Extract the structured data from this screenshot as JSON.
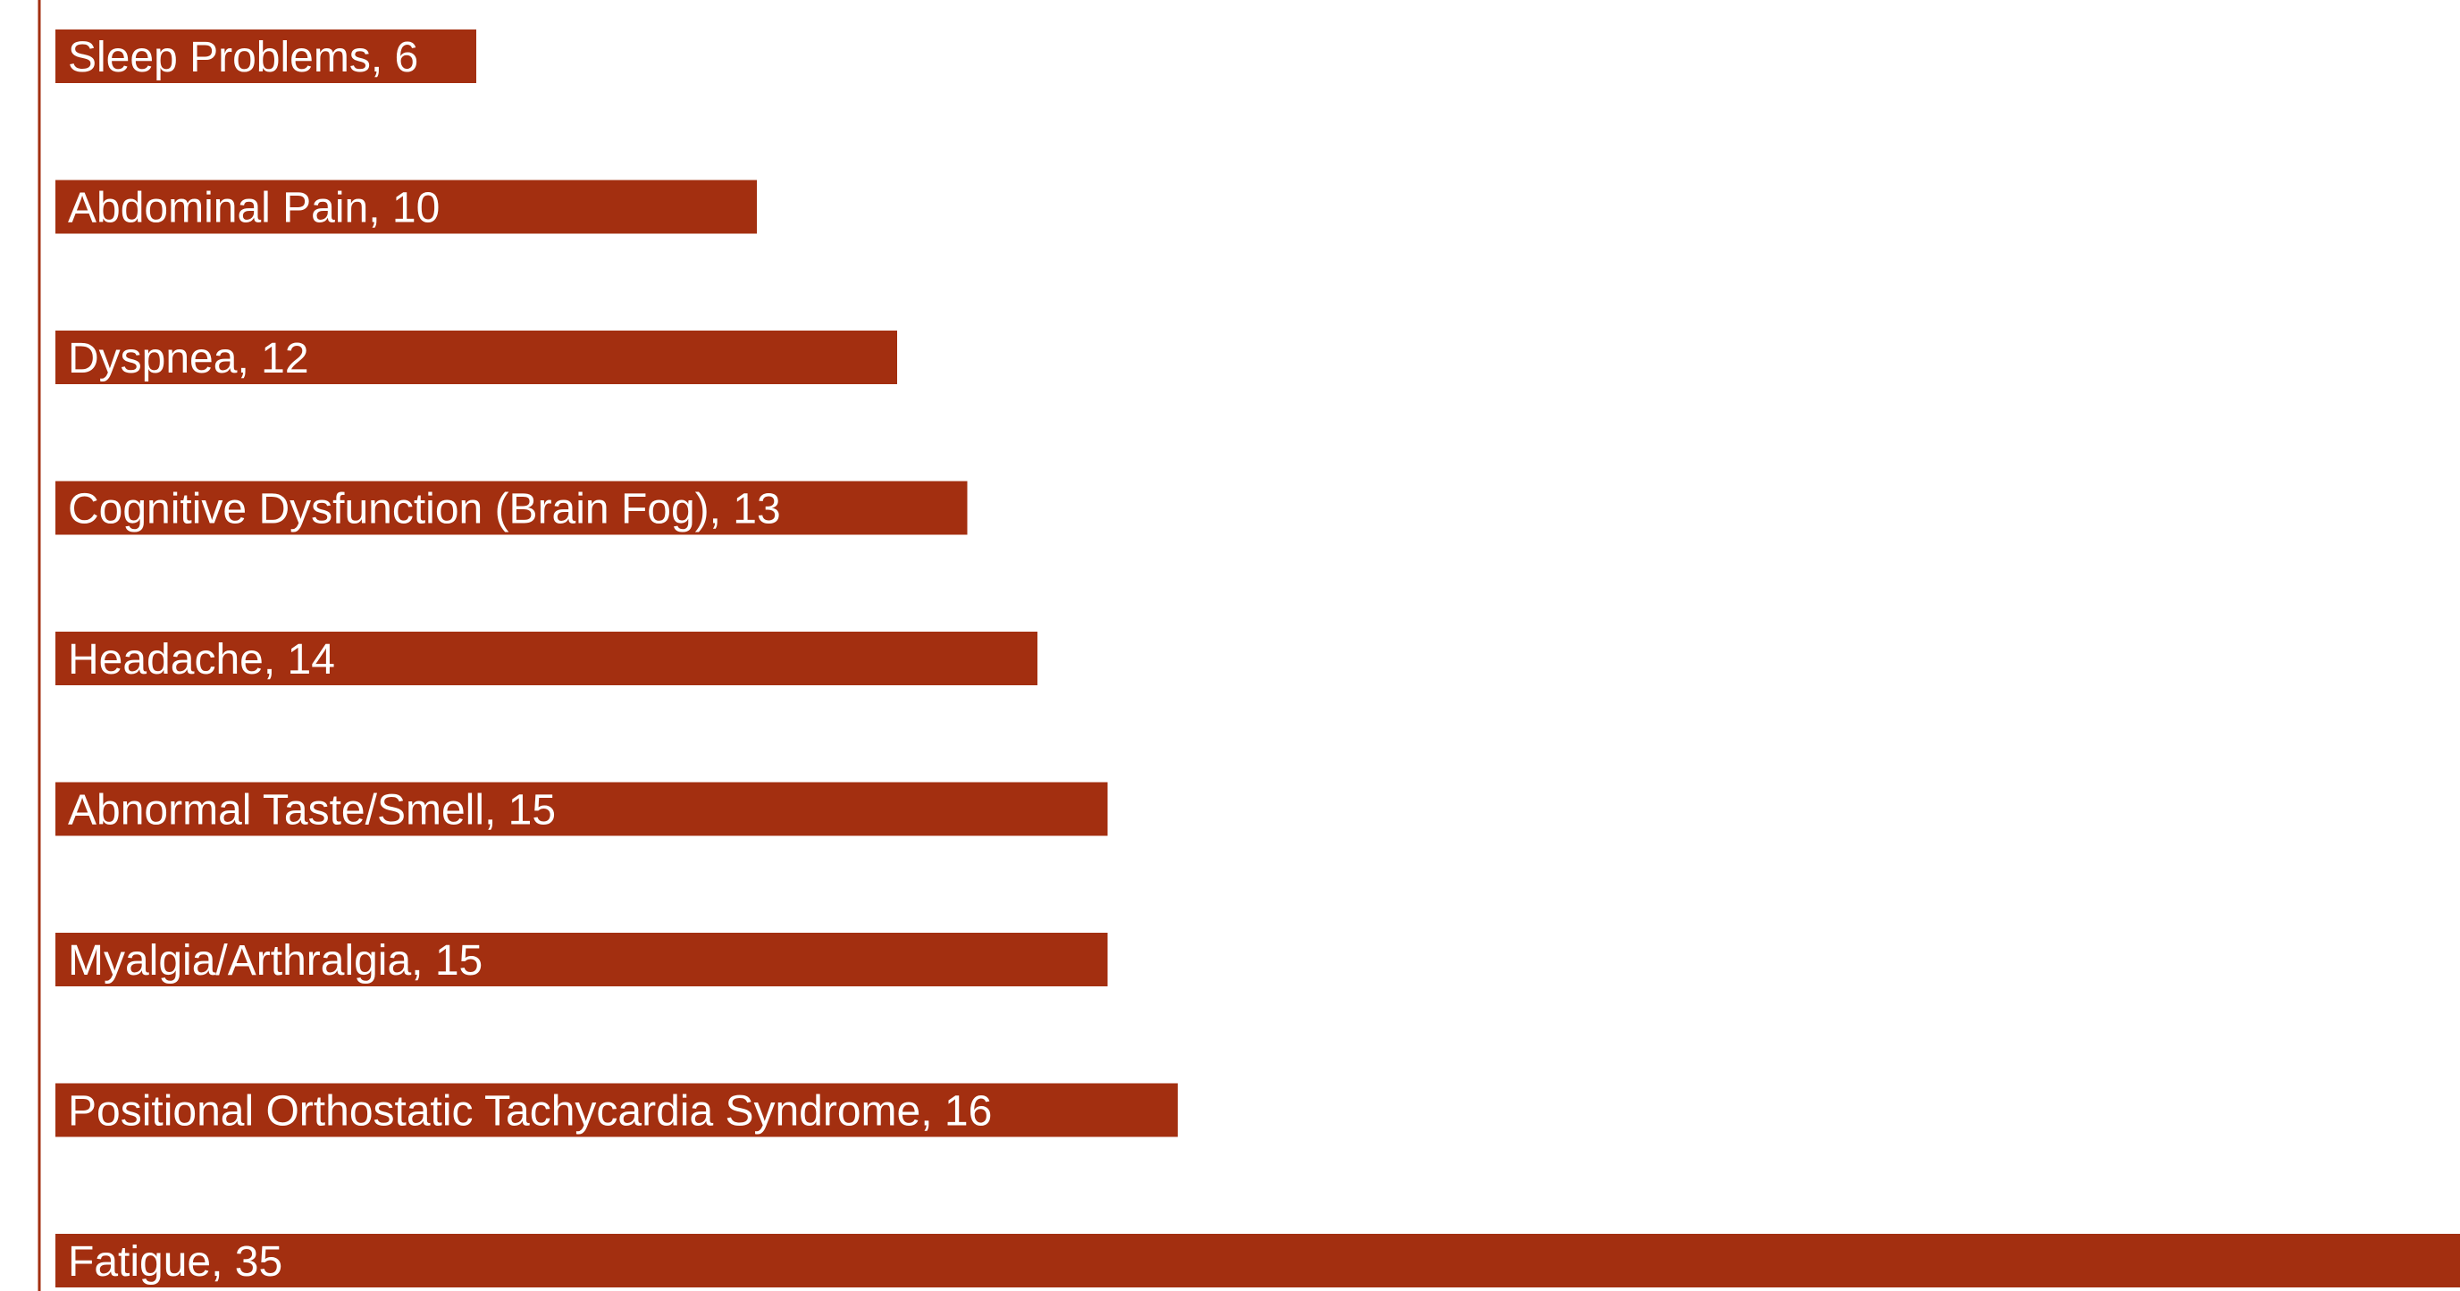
{
  "chart_data": {
    "type": "bar",
    "orientation": "horizontal",
    "title": "",
    "xlabel": "",
    "ylabel": "",
    "categories": [
      "Sleep Problems",
      "Abdominal Pain",
      "Dyspnea",
      "Cognitive Dysfunction (Brain Fog)",
      "Headache",
      "Abnormal Taste/Smell",
      "Myalgia/Arthralgia",
      "Positional Orthostatic Tachycardia Syndrome",
      "Fatigue"
    ],
    "values": [
      6,
      10,
      12,
      13,
      14,
      15,
      15,
      16,
      35
    ],
    "data_labels": [
      "Sleep Problems, 6",
      "Abdominal Pain, 10",
      "Dyspnea, 12",
      "Cognitive Dysfunction (Brain Fog), 13",
      "Headache, 14",
      "Abnormal Taste/Smell, 15",
      "Myalgia/Arthralgia, 15",
      "Positional Orthostatic Tachycardia Syndrome, 16",
      "Fatigue, 35"
    ],
    "bar_color": "#A32F10",
    "axis_color": "#A32F10",
    "label_color": "#FFFFFF",
    "grid": false,
    "legend": "none"
  }
}
